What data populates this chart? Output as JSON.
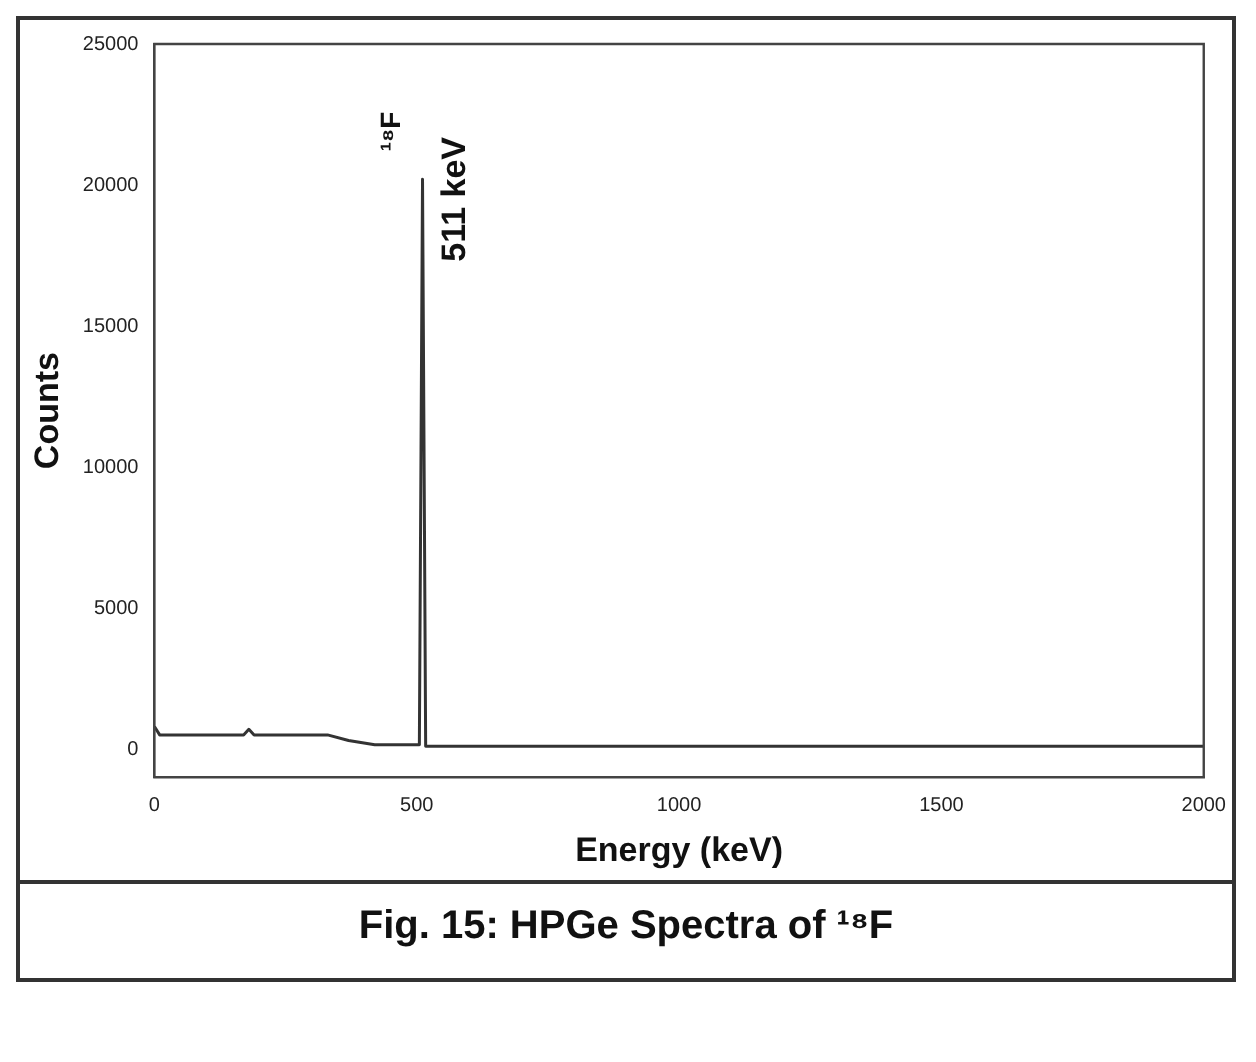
{
  "chart_data": {
    "type": "line",
    "title": "Fig. 15: HPGe Spectra of ¹⁸F",
    "xlabel": "Energy (keV)",
    "ylabel": "Counts",
    "x": [
      0,
      10,
      170,
      180,
      190,
      330,
      370,
      420,
      505,
      511,
      517,
      2000
    ],
    "series": [
      {
        "color": "#333333",
        "values": [
          800,
          500,
          500,
          700,
          500,
          500,
          300,
          150,
          150,
          20200,
          100,
          100
        ]
      }
    ],
    "xlim": [
      0,
      2000
    ],
    "xticks": [
      0,
      500,
      1000,
      1500,
      2000
    ],
    "ylim": [
      -1000,
      25000
    ],
    "yticks": [
      0,
      5000,
      10000,
      15000,
      20000,
      25000
    ],
    "grid": false,
    "legend": false,
    "annotations": [
      {
        "text": "¹⁸F",
        "x": 511,
        "y": 20200
      },
      {
        "text": "511 keV",
        "x": 511,
        "y": 20200
      }
    ]
  }
}
